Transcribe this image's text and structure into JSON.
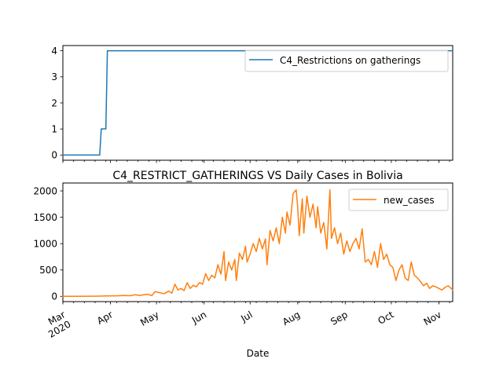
{
  "chart_data": [
    {
      "type": "line",
      "title": "",
      "xlabel": "",
      "ylabel": "",
      "ylim": [
        -0.2,
        4.2
      ],
      "yticks": [
        0,
        1,
        2,
        3,
        4
      ],
      "grid": false,
      "legend_position": "upper right",
      "series": [
        {
          "name": "C4_Restrictions on gatherings",
          "color": "#1f77b4",
          "points": [
            {
              "x": "2020-03-01",
              "y": 0
            },
            {
              "x": "2020-03-25",
              "y": 0
            },
            {
              "x": "2020-03-26",
              "y": 1
            },
            {
              "x": "2020-03-29",
              "y": 1
            },
            {
              "x": "2020-03-30",
              "y": 4
            },
            {
              "x": "2020-11-10",
              "y": 4
            }
          ]
        }
      ]
    },
    {
      "type": "line",
      "title": "C4_RESTRICT_GATHERINGS VS Daily Cases in Bolivia",
      "xlabel": "Date",
      "ylabel": "",
      "ylim": [
        -100,
        2150
      ],
      "yticks": [
        0,
        500,
        1000,
        1500,
        2000
      ],
      "x_ticks": [
        {
          "date": "2020-03-01",
          "label": "Mar\n2020"
        },
        {
          "date": "2020-04-01",
          "label": "Apr"
        },
        {
          "date": "2020-05-01",
          "label": "May"
        },
        {
          "date": "2020-06-01",
          "label": "Jun"
        },
        {
          "date": "2020-07-01",
          "label": "Jul"
        },
        {
          "date": "2020-08-01",
          "label": "Aug"
        },
        {
          "date": "2020-09-01",
          "label": "Sep"
        },
        {
          "date": "2020-10-01",
          "label": "Oct"
        },
        {
          "date": "2020-11-01",
          "label": "Nov"
        }
      ],
      "x_range": [
        "2020-03-01",
        "2020-11-10"
      ],
      "grid": false,
      "legend_position": "upper right",
      "series": [
        {
          "name": "new_cases",
          "color": "#ff7f0e",
          "points": [
            {
              "x": "2020-03-01",
              "y": 0
            },
            {
              "x": "2020-03-10",
              "y": 0
            },
            {
              "x": "2020-03-20",
              "y": 2
            },
            {
              "x": "2020-03-25",
              "y": 5
            },
            {
              "x": "2020-03-30",
              "y": 8
            },
            {
              "x": "2020-04-05",
              "y": 10
            },
            {
              "x": "2020-04-10",
              "y": 15
            },
            {
              "x": "2020-04-14",
              "y": 12
            },
            {
              "x": "2020-04-17",
              "y": 30
            },
            {
              "x": "2020-04-20",
              "y": 18
            },
            {
              "x": "2020-04-25",
              "y": 40
            },
            {
              "x": "2020-04-28",
              "y": 15
            },
            {
              "x": "2020-04-30",
              "y": 90
            },
            {
              "x": "2020-05-03",
              "y": 70
            },
            {
              "x": "2020-05-06",
              "y": 50
            },
            {
              "x": "2020-05-09",
              "y": 100
            },
            {
              "x": "2020-05-11",
              "y": 60
            },
            {
              "x": "2020-05-13",
              "y": 230
            },
            {
              "x": "2020-05-15",
              "y": 120
            },
            {
              "x": "2020-05-17",
              "y": 150
            },
            {
              "x": "2020-05-19",
              "y": 110
            },
            {
              "x": "2020-05-21",
              "y": 260
            },
            {
              "x": "2020-05-23",
              "y": 150
            },
            {
              "x": "2020-05-25",
              "y": 210
            },
            {
              "x": "2020-05-27",
              "y": 180
            },
            {
              "x": "2020-05-29",
              "y": 260
            },
            {
              "x": "2020-05-31",
              "y": 230
            },
            {
              "x": "2020-06-02",
              "y": 430
            },
            {
              "x": "2020-06-04",
              "y": 300
            },
            {
              "x": "2020-06-06",
              "y": 400
            },
            {
              "x": "2020-06-08",
              "y": 350
            },
            {
              "x": "2020-06-10",
              "y": 600
            },
            {
              "x": "2020-06-12",
              "y": 420
            },
            {
              "x": "2020-06-14",
              "y": 850
            },
            {
              "x": "2020-06-15",
              "y": 300
            },
            {
              "x": "2020-06-17",
              "y": 650
            },
            {
              "x": "2020-06-19",
              "y": 500
            },
            {
              "x": "2020-06-21",
              "y": 700
            },
            {
              "x": "2020-06-22",
              "y": 300
            },
            {
              "x": "2020-06-24",
              "y": 820
            },
            {
              "x": "2020-06-26",
              "y": 700
            },
            {
              "x": "2020-06-28",
              "y": 950
            },
            {
              "x": "2020-06-29",
              "y": 650
            },
            {
              "x": "2020-07-01",
              "y": 800
            },
            {
              "x": "2020-07-03",
              "y": 1000
            },
            {
              "x": "2020-07-05",
              "y": 850
            },
            {
              "x": "2020-07-07",
              "y": 1100
            },
            {
              "x": "2020-07-09",
              "y": 900
            },
            {
              "x": "2020-07-11",
              "y": 1090
            },
            {
              "x": "2020-07-12",
              "y": 600
            },
            {
              "x": "2020-07-14",
              "y": 1250
            },
            {
              "x": "2020-07-16",
              "y": 1050
            },
            {
              "x": "2020-07-18",
              "y": 1300
            },
            {
              "x": "2020-07-20",
              "y": 1000
            },
            {
              "x": "2020-07-22",
              "y": 1500
            },
            {
              "x": "2020-07-24",
              "y": 1200
            },
            {
              "x": "2020-07-25",
              "y": 1600
            },
            {
              "x": "2020-07-27",
              "y": 1350
            },
            {
              "x": "2020-07-29",
              "y": 1950
            },
            {
              "x": "2020-07-31",
              "y": 2020
            },
            {
              "x": "2020-08-01",
              "y": 1700
            },
            {
              "x": "2020-08-02",
              "y": 1150
            },
            {
              "x": "2020-08-04",
              "y": 1850
            },
            {
              "x": "2020-08-05",
              "y": 1200
            },
            {
              "x": "2020-08-07",
              "y": 1900
            },
            {
              "x": "2020-08-09",
              "y": 1500
            },
            {
              "x": "2020-08-11",
              "y": 1750
            },
            {
              "x": "2020-08-13",
              "y": 1300
            },
            {
              "x": "2020-08-14",
              "y": 1700
            },
            {
              "x": "2020-08-16",
              "y": 1200
            },
            {
              "x": "2020-08-18",
              "y": 1400
            },
            {
              "x": "2020-08-20",
              "y": 900
            },
            {
              "x": "2020-08-22",
              "y": 2020
            },
            {
              "x": "2020-08-23",
              "y": 1100
            },
            {
              "x": "2020-08-25",
              "y": 1300
            },
            {
              "x": "2020-08-27",
              "y": 1000
            },
            {
              "x": "2020-08-29",
              "y": 1200
            },
            {
              "x": "2020-08-31",
              "y": 800
            },
            {
              "x": "2020-09-02",
              "y": 1050
            },
            {
              "x": "2020-09-04",
              "y": 850
            },
            {
              "x": "2020-09-06",
              "y": 1000
            },
            {
              "x": "2020-09-08",
              "y": 1100
            },
            {
              "x": "2020-09-10",
              "y": 900
            },
            {
              "x": "2020-09-12",
              "y": 1280
            },
            {
              "x": "2020-09-14",
              "y": 650
            },
            {
              "x": "2020-09-16",
              "y": 700
            },
            {
              "x": "2020-09-18",
              "y": 600
            },
            {
              "x": "2020-09-20",
              "y": 850
            },
            {
              "x": "2020-09-22",
              "y": 550
            },
            {
              "x": "2020-09-24",
              "y": 1000
            },
            {
              "x": "2020-09-26",
              "y": 700
            },
            {
              "x": "2020-09-28",
              "y": 800
            },
            {
              "x": "2020-09-30",
              "y": 600
            },
            {
              "x": "2020-10-02",
              "y": 550
            },
            {
              "x": "2020-10-04",
              "y": 300
            },
            {
              "x": "2020-10-06",
              "y": 500
            },
            {
              "x": "2020-10-08",
              "y": 600
            },
            {
              "x": "2020-10-10",
              "y": 350
            },
            {
              "x": "2020-10-12",
              "y": 300
            },
            {
              "x": "2020-10-14",
              "y": 650
            },
            {
              "x": "2020-10-16",
              "y": 400
            },
            {
              "x": "2020-10-18",
              "y": 350
            },
            {
              "x": "2020-10-20",
              "y": 280
            },
            {
              "x": "2020-10-22",
              "y": 200
            },
            {
              "x": "2020-10-24",
              "y": 250
            },
            {
              "x": "2020-10-26",
              "y": 150
            },
            {
              "x": "2020-10-28",
              "y": 200
            },
            {
              "x": "2020-10-30",
              "y": 180
            },
            {
              "x": "2020-11-01",
              "y": 150
            },
            {
              "x": "2020-11-03",
              "y": 120
            },
            {
              "x": "2020-11-05",
              "y": 170
            },
            {
              "x": "2020-11-07",
              "y": 200
            },
            {
              "x": "2020-11-09",
              "y": 150
            },
            {
              "x": "2020-11-10",
              "y": 120
            }
          ]
        }
      ]
    }
  ]
}
